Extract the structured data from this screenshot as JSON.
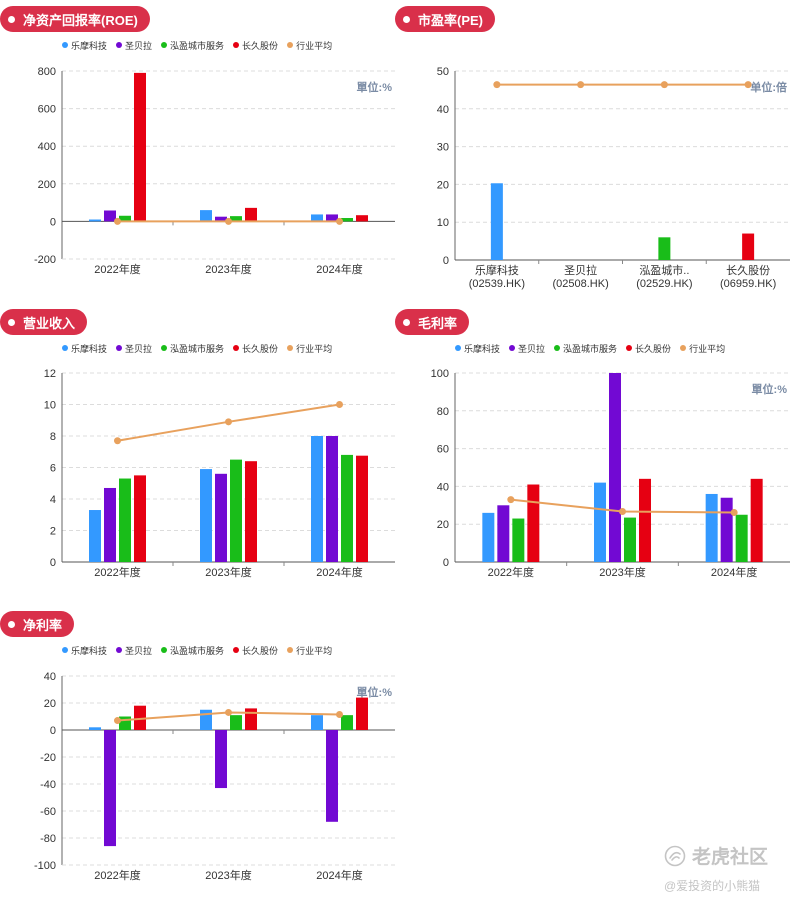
{
  "companies": [
    {
      "name": "乐摩科技",
      "color": "#3399ff"
    },
    {
      "name": "圣贝拉",
      "color": "#7209d3"
    },
    {
      "name": "泓盈城市服务",
      "color": "#19bd19"
    },
    {
      "name": "长久股份",
      "color": "#e60012"
    }
  ],
  "industry_avg": {
    "name": "行业平均",
    "color": "#e8a15d"
  },
  "chart_data": [
    {
      "id": "roe",
      "type": "bar",
      "title": "净资产回报率(ROE)",
      "unit_label": "單位:%",
      "categories": [
        "2022年度",
        "2023年度",
        "2024年度"
      ],
      "ylim": [
        -200,
        800
      ],
      "yticks": [
        -200,
        0,
        200,
        400,
        600,
        800
      ],
      "series": [
        {
          "name": "乐摩科技",
          "values": [
            10,
            60,
            37
          ]
        },
        {
          "name": "圣贝拉",
          "values": [
            58,
            25,
            37
          ]
        },
        {
          "name": "泓盈城市服务",
          "values": [
            30,
            28,
            18
          ]
        },
        {
          "name": "长久股份",
          "values": [
            790,
            72,
            33
          ]
        }
      ],
      "line": {
        "name": "行业平均",
        "values": [
          0,
          0,
          0
        ]
      }
    },
    {
      "id": "pe",
      "type": "bar",
      "title": "市盈率(PE)",
      "unit_label": "单位:倍",
      "categories": [
        "乐摩科技",
        "圣贝拉",
        "泓盈城市..",
        "长久股份"
      ],
      "category_codes": [
        "(02539.HK)",
        "(02508.HK)",
        "(02529.HK)",
        "(06959.HK)"
      ],
      "ylim": [
        0,
        50
      ],
      "yticks": [
        0,
        10,
        20,
        30,
        40,
        50
      ],
      "values": [
        20.3,
        null,
        6,
        7
      ],
      "line": {
        "name": "行业平均",
        "values": [
          46.4,
          46.4,
          46.4,
          46.4
        ]
      }
    },
    {
      "id": "revenue",
      "type": "bar",
      "title": "营业收入",
      "unit_label": "",
      "categories": [
        "2022年度",
        "2023年度",
        "2024年度"
      ],
      "ylim": [
        0,
        12
      ],
      "yticks": [
        0,
        2,
        4,
        6,
        8,
        10,
        12
      ],
      "series": [
        {
          "name": "乐摩科技",
          "values": [
            3.3,
            5.9,
            8.0
          ]
        },
        {
          "name": "圣贝拉",
          "values": [
            4.7,
            5.6,
            8.0
          ]
        },
        {
          "name": "泓盈城市服务",
          "values": [
            5.3,
            6.5,
            6.8
          ]
        },
        {
          "name": "长久股份",
          "values": [
            5.5,
            6.4,
            6.75
          ]
        }
      ],
      "line": {
        "name": "行业平均",
        "values": [
          7.7,
          8.9,
          10.0
        ]
      }
    },
    {
      "id": "gross_margin",
      "type": "bar",
      "title": "毛利率",
      "unit_label": "單位:%",
      "categories": [
        "2022年度",
        "2023年度",
        "2024年度"
      ],
      "ylim": [
        0,
        100
      ],
      "yticks": [
        0,
        20,
        40,
        60,
        80,
        100
      ],
      "series": [
        {
          "name": "乐摩科技",
          "values": [
            26,
            42,
            36
          ]
        },
        {
          "name": "圣贝拉",
          "values": [
            30,
            100,
            34
          ]
        },
        {
          "name": "泓盈城市服务",
          "values": [
            23,
            23.5,
            25
          ]
        },
        {
          "name": "长久股份",
          "values": [
            41,
            44,
            44
          ]
        }
      ],
      "line": {
        "name": "行业平均",
        "values": [
          33,
          26.7,
          26.2
        ]
      }
    },
    {
      "id": "net_margin",
      "type": "bar",
      "title": "净利率",
      "unit_label": "單位:%",
      "categories": [
        "2022年度",
        "2023年度",
        "2024年度"
      ],
      "ylim": [
        -100,
        40
      ],
      "yticks": [
        -100,
        -80,
        -60,
        -40,
        -20,
        0,
        20,
        40
      ],
      "series": [
        {
          "name": "乐摩科技",
          "values": [
            2,
            15,
            11
          ]
        },
        {
          "name": "圣贝拉",
          "values": [
            -86,
            -43,
            -68
          ]
        },
        {
          "name": "泓盈城市服务",
          "values": [
            10,
            11,
            11
          ]
        },
        {
          "name": "长久股份",
          "values": [
            18,
            16,
            24
          ]
        }
      ],
      "line": {
        "name": "行业平均",
        "values": [
          7,
          13,
          11.5
        ]
      }
    }
  ],
  "watermark": {
    "brand": "老虎社区",
    "author": "@爱投资的小熊猫"
  }
}
